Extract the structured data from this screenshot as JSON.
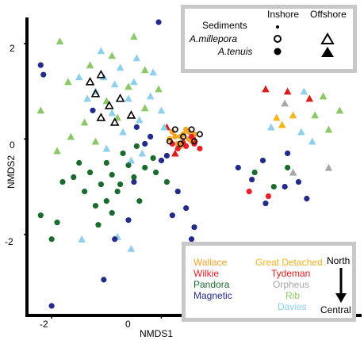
{
  "chart_data": {
    "type": "scatter",
    "xlabel": "NMDS1",
    "ylabel": "NMDS2",
    "xticks": [
      -2,
      0
    ],
    "yticks": [
      2,
      0,
      -2
    ],
    "xlim": [
      -2.45,
      3.65
    ],
    "ylim": [
      -3.7,
      2.55
    ],
    "shape_legend": {
      "title": "Sediments",
      "col_inshore": "Inshore",
      "col_offshore": "Offshore",
      "row1": "A.millepora",
      "row2": "A.tenuis",
      "inshore_marker": "circle",
      "offshore_marker": "triangle",
      "sediment_marker": "small filled dot",
      "millepora_marker": "open",
      "tenuis_marker": "filled"
    },
    "site_legend": {
      "sites": [
        {
          "name": "Wallace",
          "color": "#f5a623"
        },
        {
          "name": "Wilkie",
          "color": "#e8202a"
        },
        {
          "name": "Pandora",
          "color": "#1b6b2e"
        },
        {
          "name": "Magnetic",
          "color": "#232b8a"
        },
        {
          "name": "Great Detached",
          "color": "#f3b51b"
        },
        {
          "name": "Tydeman",
          "color": "#d91e1e"
        },
        {
          "name": "Orpheus",
          "color": "#a8a8a8"
        },
        {
          "name": "Rib",
          "color": "#8cc867"
        },
        {
          "name": "Davies",
          "color": "#8ecfee"
        }
      ],
      "gradient_top": "North",
      "gradient_bottom": "Central"
    },
    "series": [
      {
        "site": "Wallace",
        "group": "inshore",
        "color": "#f5a623",
        "points": [
          [
            0.2,
            0.15
          ],
          [
            0.35,
            0.05
          ],
          [
            0.5,
            0.0
          ],
          [
            0.3,
            -0.1
          ],
          [
            0.45,
            0.2
          ],
          [
            0.25,
            0.05
          ],
          [
            0.55,
            -0.05
          ],
          [
            0.4,
            0.1
          ],
          [
            0.15,
            0.0
          ],
          [
            0.6,
            0.1
          ],
          [
            0.35,
            -0.15
          ],
          [
            0.5,
            0.15
          ]
        ]
      },
      {
        "site": "Wilkie",
        "group": "inshore",
        "color": "#e8202a",
        "points": [
          [
            0.3,
            -0.2
          ],
          [
            0.45,
            -0.15
          ],
          [
            0.6,
            -0.1
          ],
          [
            0.2,
            -0.1
          ],
          [
            0.55,
            0.05
          ],
          [
            0.7,
            -0.2
          ],
          [
            1.6,
            -1.1
          ],
          [
            1.95,
            -1.2
          ]
        ]
      },
      {
        "site": "Pandora",
        "group": "inshore",
        "color": "#1b6b2e",
        "points": [
          [
            -0.6,
            -0.55
          ],
          [
            -0.9,
            -0.75
          ],
          [
            -1.1,
            -0.95
          ],
          [
            -1.3,
            -0.7
          ],
          [
            -1.6,
            -0.8
          ],
          [
            -1.4,
            -1.1
          ],
          [
            -0.8,
            -1.1
          ],
          [
            -1.0,
            -1.3
          ],
          [
            -1.2,
            -1.4
          ],
          [
            -0.5,
            -0.8
          ],
          [
            -0.3,
            -0.6
          ],
          [
            -0.15,
            -0.4
          ],
          [
            -0.7,
            -0.3
          ],
          [
            -1.5,
            -0.5
          ],
          [
            -1.8,
            -0.9
          ],
          [
            -2.2,
            -1.6
          ],
          [
            -1.9,
            -1.75
          ],
          [
            -2.0,
            -2.1
          ],
          [
            -1.15,
            -1.8
          ],
          [
            -0.9,
            -1.55
          ],
          [
            -0.4,
            -1.3
          ],
          [
            -0.1,
            -0.7
          ],
          [
            0.1,
            -0.9
          ],
          [
            -0.45,
            -0.15
          ],
          [
            -1.0,
            -0.5
          ],
          [
            -0.75,
            -0.95
          ],
          [
            2.05,
            -1.0
          ],
          [
            1.7,
            -0.7
          ],
          [
            2.3,
            -0.6
          ]
        ]
      },
      {
        "site": "Magnetic",
        "group": "inshore",
        "color": "#232b8a",
        "points": [
          [
            -0.05,
            2.45
          ],
          [
            -2.2,
            1.55
          ],
          [
            -2.15,
            1.35
          ],
          [
            0.8,
            2.35
          ],
          [
            -0.5,
            -0.9
          ],
          [
            0.1,
            -0.35
          ],
          [
            0.3,
            -1.1
          ],
          [
            0.45,
            -1.45
          ],
          [
            0.55,
            -2.1
          ],
          [
            0.75,
            -2.6
          ],
          [
            -0.85,
            -2.1
          ],
          [
            -1.05,
            -2.95
          ],
          [
            -2.0,
            -3.5
          ],
          [
            -0.45,
            0.25
          ],
          [
            -0.3,
            -0.1
          ],
          [
            0.0,
            -0.45
          ],
          [
            1.4,
            -0.6
          ],
          [
            1.65,
            -0.85
          ],
          [
            1.9,
            -1.35
          ],
          [
            2.25,
            -1.0
          ],
          [
            2.5,
            -0.9
          ],
          [
            2.65,
            -1.25
          ],
          [
            2.3,
            -0.3
          ],
          [
            1.85,
            -0.45
          ],
          [
            0.6,
            -1.85
          ],
          [
            -0.6,
            -1.7
          ],
          [
            0.2,
            -1.6
          ],
          [
            -0.2,
            0.05
          ],
          [
            -1.25,
            0.6
          ]
        ]
      },
      {
        "site": "Great Detached",
        "group": "offshore",
        "color": "#f3b51b",
        "points": [
          [
            2.1,
            0.45
          ],
          [
            2.4,
            0.5
          ],
          [
            2.2,
            0.3
          ]
        ]
      },
      {
        "site": "Tydeman",
        "group": "offshore",
        "color": "#d91e1e",
        "points": [
          [
            1.9,
            1.05
          ],
          [
            2.3,
            1.0
          ],
          [
            2.7,
            0.85
          ],
          [
            0.1,
            0.25
          ],
          [
            0.4,
            -0.05
          ],
          [
            0.6,
            0.0
          ],
          [
            0.25,
            -0.3
          ]
        ]
      },
      {
        "site": "Orpheus",
        "group": "offshore",
        "color": "#a8a8a8",
        "points": [
          [
            2.25,
            0.75
          ],
          [
            3.05,
            -0.6
          ],
          [
            2.4,
            -0.7
          ]
        ]
      },
      {
        "site": "Rib",
        "group": "offshore",
        "color": "#8cc867",
        "points": [
          [
            -1.85,
            2.05
          ],
          [
            -0.5,
            2.15
          ],
          [
            -0.9,
            1.75
          ],
          [
            -1.3,
            1.55
          ],
          [
            -1.7,
            1.2
          ],
          [
            -2.2,
            0.6
          ],
          [
            -1.4,
            0.35
          ],
          [
            -1.0,
            0.8
          ],
          [
            -0.6,
            1.1
          ],
          [
            -0.3,
            0.65
          ],
          [
            -1.65,
            0.05
          ],
          [
            -1.9,
            -0.25
          ],
          [
            -1.2,
            -0.05
          ],
          [
            -0.8,
            0.45
          ],
          [
            -0.3,
            1.45
          ],
          [
            -0.05,
            1.05
          ],
          [
            3.25,
            0.6
          ],
          [
            3.05,
            0.2
          ],
          [
            2.8,
            0.5
          ],
          [
            2.95,
            0.9
          ]
        ]
      },
      {
        "site": "Davies",
        "group": "offshore",
        "color": "#8ecfee",
        "points": [
          [
            -1.1,
            1.85
          ],
          [
            -0.75,
            1.5
          ],
          [
            -1.05,
            1.3
          ],
          [
            -0.45,
            1.7
          ],
          [
            -0.15,
            1.4
          ],
          [
            -0.6,
            0.85
          ],
          [
            -0.9,
            0.55
          ],
          [
            -1.2,
            1.0
          ],
          [
            -0.4,
            0.4
          ],
          [
            0.0,
            0.6
          ],
          [
            -0.7,
            0.15
          ],
          [
            -1.35,
            0.85
          ],
          [
            -0.2,
            0.9
          ],
          [
            -1.5,
            1.3
          ],
          [
            -0.85,
            1.15
          ],
          [
            -0.35,
            -0.3
          ],
          [
            -0.55,
            -0.45
          ],
          [
            -1.0,
            -0.2
          ],
          [
            2.0,
            0.25
          ],
          [
            2.55,
            0.15
          ],
          [
            2.75,
            -0.05
          ],
          [
            2.6,
            1.0
          ],
          [
            -0.5,
            1.2
          ],
          [
            0.05,
            0.25
          ],
          [
            -1.45,
            -2.1
          ],
          [
            -0.55,
            -2.3
          ],
          [
            -0.8,
            -2.05
          ]
        ]
      },
      {
        "site": "A.millepora (offshore)",
        "group": "offshore-open",
        "color": "#000000",
        "points": [
          [
            -1.3,
            1.2
          ],
          [
            -1.1,
            1.35
          ],
          [
            -1.2,
            0.95
          ],
          [
            -0.75,
            0.85
          ],
          [
            -0.95,
            0.7
          ],
          [
            -0.55,
            0.5
          ],
          [
            -0.85,
            0.35
          ],
          [
            -1.1,
            0.45
          ]
        ]
      },
      {
        "site": "A.millepora (inshore)",
        "group": "inshore-open",
        "color": "#000000",
        "points": [
          [
            0.25,
            0.2
          ],
          [
            0.4,
            0.05
          ],
          [
            0.55,
            0.2
          ],
          [
            0.6,
            -0.05
          ],
          [
            0.35,
            -0.1
          ],
          [
            0.7,
            0.1
          ],
          [
            0.15,
            -0.05
          ]
        ]
      }
    ]
  }
}
